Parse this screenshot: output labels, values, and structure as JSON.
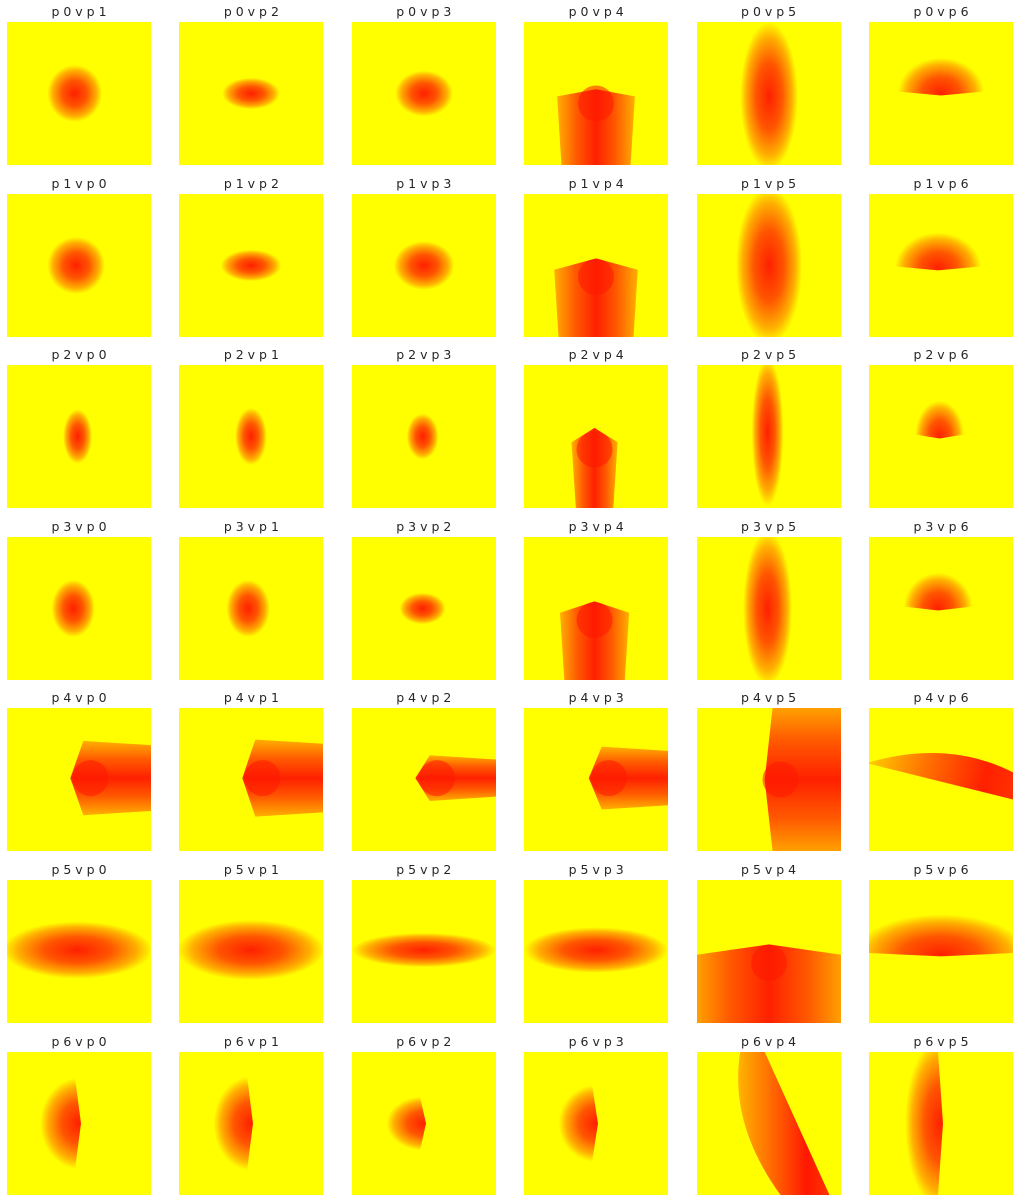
{
  "chart_data": {
    "type": "heatmap",
    "grid_rows": 7,
    "grid_cols": 6,
    "colormap": "autumn",
    "colors": {
      "background": "#ffffff",
      "high": "#ff0000",
      "low": "#ffff00",
      "title_text": "#262626"
    },
    "panels": [
      {
        "title": "p 0 v p 1",
        "kind": "ellipse",
        "cx": 0.47,
        "cy": 0.5,
        "rx": 0.19,
        "ry": 0.2
      },
      {
        "title": "p 0 v p 2",
        "kind": "ellipse",
        "cx": 0.5,
        "cy": 0.5,
        "rx": 0.2,
        "ry": 0.11
      },
      {
        "title": "p 0 v p 3",
        "kind": "ellipse",
        "cx": 0.5,
        "cy": 0.5,
        "rx": 0.2,
        "ry": 0.16
      },
      {
        "title": "p 0 v p 4",
        "kind": "wedge",
        "orientation": "down",
        "apex": 0.47,
        "shoulder": 0.52,
        "center": 0.5,
        "half_width": 0.27
      },
      {
        "title": "p 0 v p 5",
        "kind": "ellipse",
        "cx": 0.5,
        "cy": 0.52,
        "rx": 0.2,
        "ry": 0.52
      },
      {
        "title": "p 0 v p 6",
        "kind": "dome",
        "orientation": "up",
        "edge_y": 0.5,
        "cx": 0.5,
        "rx": 0.3,
        "ry": 0.25
      },
      {
        "title": "p 1 v p 0",
        "kind": "ellipse",
        "cx": 0.48,
        "cy": 0.5,
        "rx": 0.2,
        "ry": 0.2
      },
      {
        "title": "p 1 v p 2",
        "kind": "ellipse",
        "cx": 0.5,
        "cy": 0.5,
        "rx": 0.21,
        "ry": 0.11
      },
      {
        "title": "p 1 v p 3",
        "kind": "ellipse",
        "cx": 0.5,
        "cy": 0.5,
        "rx": 0.21,
        "ry": 0.17
      },
      {
        "title": "p 1 v p 4",
        "kind": "wedge",
        "orientation": "down",
        "apex": 0.45,
        "shoulder": 0.53,
        "center": 0.5,
        "half_width": 0.29
      },
      {
        "title": "p 1 v p 5",
        "kind": "ellipse",
        "cx": 0.5,
        "cy": 0.5,
        "rx": 0.23,
        "ry": 0.55
      },
      {
        "title": "p 1 v p 6",
        "kind": "dome",
        "orientation": "up",
        "edge_y": 0.52,
        "cx": 0.48,
        "rx": 0.3,
        "ry": 0.25
      },
      {
        "title": "p 2 v p 0",
        "kind": "ellipse",
        "cx": 0.49,
        "cy": 0.5,
        "rx": 0.1,
        "ry": 0.19
      },
      {
        "title": "p 2 v p 1",
        "kind": "ellipse",
        "cx": 0.5,
        "cy": 0.5,
        "rx": 0.11,
        "ry": 0.2
      },
      {
        "title": "p 2 v p 3",
        "kind": "ellipse",
        "cx": 0.49,
        "cy": 0.5,
        "rx": 0.11,
        "ry": 0.16
      },
      {
        "title": "p 2 v p 4",
        "kind": "wedge",
        "orientation": "down",
        "apex": 0.44,
        "shoulder": 0.54,
        "center": 0.49,
        "half_width": 0.16
      },
      {
        "title": "p 2 v p 5",
        "kind": "ellipse",
        "cx": 0.49,
        "cy": 0.47,
        "rx": 0.11,
        "ry": 0.52
      },
      {
        "title": "p 2 v p 6",
        "kind": "dome",
        "orientation": "up",
        "edge_y": 0.5,
        "cx": 0.49,
        "rx": 0.17,
        "ry": 0.25
      },
      {
        "title": "p 3 v p 0",
        "kind": "ellipse",
        "cx": 0.46,
        "cy": 0.5,
        "rx": 0.15,
        "ry": 0.2
      },
      {
        "title": "p 3 v p 1",
        "kind": "ellipse",
        "cx": 0.48,
        "cy": 0.5,
        "rx": 0.15,
        "ry": 0.2
      },
      {
        "title": "p 3 v p 2",
        "kind": "ellipse",
        "cx": 0.49,
        "cy": 0.5,
        "rx": 0.16,
        "ry": 0.11
      },
      {
        "title": "p 3 v p 4",
        "kind": "wedge",
        "orientation": "down",
        "apex": 0.45,
        "shoulder": 0.53,
        "center": 0.49,
        "half_width": 0.24
      },
      {
        "title": "p 3 v p 5",
        "kind": "ellipse",
        "cx": 0.49,
        "cy": 0.5,
        "rx": 0.17,
        "ry": 0.54
      },
      {
        "title": "p 3 v p 6",
        "kind": "dome",
        "orientation": "up",
        "edge_y": 0.5,
        "cx": 0.48,
        "rx": 0.24,
        "ry": 0.25
      },
      {
        "title": "p 4 v p 0",
        "kind": "wedge",
        "orientation": "right",
        "apex": 0.44,
        "shoulder": 0.53,
        "center": 0.49,
        "half_width": 0.26
      },
      {
        "title": "p 4 v p 1",
        "kind": "wedge",
        "orientation": "right",
        "apex": 0.44,
        "shoulder": 0.53,
        "center": 0.49,
        "half_width": 0.27
      },
      {
        "title": "p 4 v p 2",
        "kind": "wedge",
        "orientation": "right",
        "apex": 0.44,
        "shoulder": 0.54,
        "center": 0.49,
        "half_width": 0.16
      },
      {
        "title": "p 4 v p 3",
        "kind": "wedge",
        "orientation": "right",
        "apex": 0.45,
        "shoulder": 0.54,
        "center": 0.49,
        "half_width": 0.22
      },
      {
        "title": "p 4 v p 5",
        "kind": "wedge",
        "orientation": "right",
        "apex": 0.47,
        "shoulder": 0.53,
        "center": 0.5,
        "half_width": 0.55
      },
      {
        "title": "p 4 v p 6",
        "kind": "band",
        "orientation": "tilted"
      },
      {
        "title": "p 5 v p 0",
        "kind": "ellipse",
        "cx": 0.49,
        "cy": 0.49,
        "rx": 0.52,
        "ry": 0.2
      },
      {
        "title": "p 5 v p 1",
        "kind": "ellipse",
        "cx": 0.5,
        "cy": 0.49,
        "rx": 0.51,
        "ry": 0.21
      },
      {
        "title": "p 5 v p 2",
        "kind": "ellipse",
        "cx": 0.5,
        "cy": 0.49,
        "rx": 0.5,
        "ry": 0.12
      },
      {
        "title": "p 5 v p 3",
        "kind": "ellipse",
        "cx": 0.5,
        "cy": 0.49,
        "rx": 0.5,
        "ry": 0.16
      },
      {
        "title": "p 5 v p 4",
        "kind": "wedge",
        "orientation": "down",
        "apex": 0.45,
        "shoulder": 0.53,
        "center": 0.5,
        "half_width": 0.55
      },
      {
        "title": "p 5 v p 6",
        "kind": "dome",
        "orientation": "up",
        "edge_y": 0.52,
        "cx": 0.5,
        "rx": 0.6,
        "ry": 0.28
      },
      {
        "title": "p 6 v p 0",
        "kind": "dome",
        "orientation": "left",
        "edge_x": 0.5,
        "cy": 0.5,
        "rx": 0.27,
        "ry": 0.32
      },
      {
        "title": "p 6 v p 1",
        "kind": "dome",
        "orientation": "left",
        "edge_x": 0.5,
        "cy": 0.5,
        "rx": 0.26,
        "ry": 0.33
      },
      {
        "title": "p 6 v p 2",
        "kind": "dome",
        "orientation": "left",
        "edge_x": 0.5,
        "cy": 0.5,
        "rx": 0.26,
        "ry": 0.19
      },
      {
        "title": "p 6 v p 3",
        "kind": "dome",
        "orientation": "left",
        "edge_x": 0.5,
        "cy": 0.5,
        "rx": 0.26,
        "ry": 0.27
      },
      {
        "title": "p 6 v p 4",
        "kind": "band",
        "orientation": "steep"
      },
      {
        "title": "p 6 v p 5",
        "kind": "dome",
        "orientation": "left",
        "edge_x": 0.5,
        "cy": 0.5,
        "rx": 0.25,
        "ry": 0.6
      }
    ]
  }
}
